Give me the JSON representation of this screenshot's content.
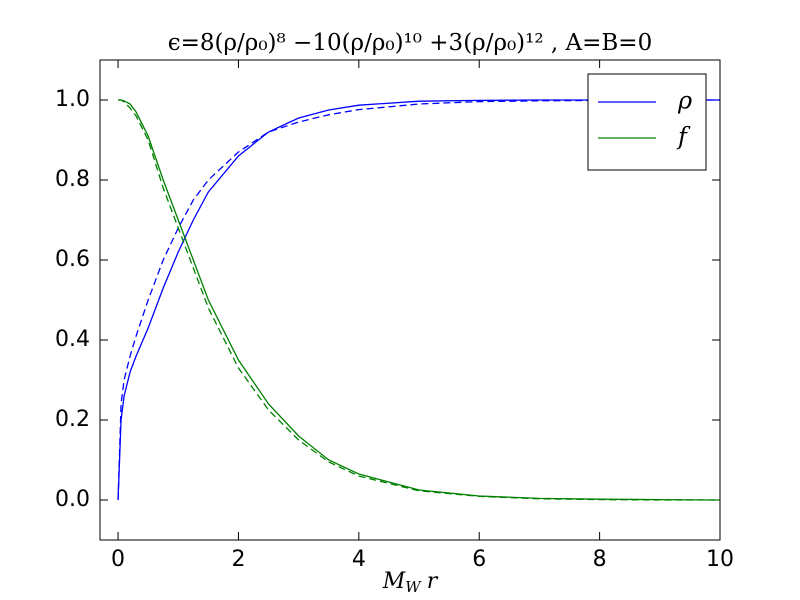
{
  "chart_data": {
    "type": "line",
    "title": "ϵ=8(ρ/ρ₀)⁸ −10(ρ/ρ₀)¹⁰ +3(ρ/ρ₀)¹² , A=B=0",
    "xlabel": [
      "M",
      "W",
      "r"
    ],
    "x": [
      0,
      0.05,
      0.1,
      0.2,
      0.3,
      0.5,
      0.75,
      1,
      1.25,
      1.5,
      2,
      2.5,
      3,
      3.5,
      4,
      5,
      6,
      7,
      8,
      9,
      10
    ],
    "series": [
      {
        "name": "ρ",
        "color": "#0000ff",
        "dashed": false,
        "values": [
          0,
          0.2,
          0.26,
          0.32,
          0.36,
          0.43,
          0.53,
          0.62,
          0.7,
          0.77,
          0.86,
          0.92,
          0.955,
          0.975,
          0.987,
          0.997,
          0.999,
          1,
          1,
          1,
          1
        ]
      },
      {
        "name": "f",
        "color": "#008000",
        "dashed": false,
        "values": [
          1,
          1,
          0.998,
          0.99,
          0.97,
          0.91,
          0.8,
          0.7,
          0.6,
          0.5,
          0.35,
          0.24,
          0.16,
          0.1,
          0.065,
          0.025,
          0.01,
          0.004,
          0.002,
          0.001,
          0
        ]
      },
      {
        "color": "#0000ff",
        "dashed": true,
        "values": [
          0,
          0.24,
          0.3,
          0.36,
          0.41,
          0.5,
          0.6,
          0.68,
          0.75,
          0.8,
          0.87,
          0.92,
          0.945,
          0.963,
          0.976,
          0.99,
          0.996,
          0.998,
          0.999,
          1,
          1
        ]
      },
      {
        "color": "#008000",
        "dashed": true,
        "values": [
          1,
          1,
          0.995,
          0.98,
          0.96,
          0.9,
          0.78,
          0.68,
          0.58,
          0.48,
          0.33,
          0.225,
          0.15,
          0.095,
          0.06,
          0.023,
          0.009,
          0.003,
          0.001,
          0,
          0
        ]
      }
    ],
    "xlim": [
      -0.3,
      10
    ],
    "ylim": [
      -0.1,
      1.1
    ],
    "xticks": [
      0,
      2,
      4,
      6,
      8,
      10
    ],
    "yticks": [
      {
        "value": 0,
        "label": "0.0"
      },
      0.2,
      0.4,
      0.6,
      0.8,
      {
        "value": 1,
        "label": "1.0"
      }
    ],
    "legend": "upper right",
    "grid": false
  }
}
